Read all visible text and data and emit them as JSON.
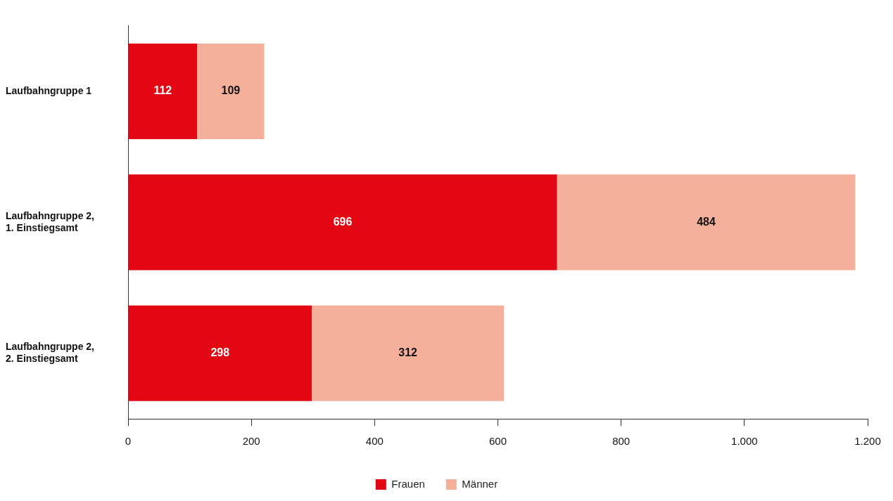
{
  "chart_data": {
    "type": "bar",
    "orientation": "horizontal",
    "stacked": true,
    "categories": [
      "Laufbahngruppe 1",
      "Laufbahngruppe 2, 1. Einstiegsamt",
      "Laufbahngruppe 2, 2. Einstiegsamt"
    ],
    "series": [
      {
        "name": "Frauen",
        "color": "#e30613",
        "values": [
          112,
          696,
          298
        ]
      },
      {
        "name": "Männer",
        "color": "#f4b09a",
        "values": [
          109,
          484,
          312
        ]
      }
    ],
    "xlim": [
      0,
      1200
    ],
    "xticks": [
      0,
      200,
      400,
      600,
      800,
      {
        "value": 1000,
        "label": "1.000"
      },
      {
        "value": 1200,
        "label": "1.200"
      }
    ],
    "grid": false,
    "legend": "bottom",
    "data_labels": true
  }
}
